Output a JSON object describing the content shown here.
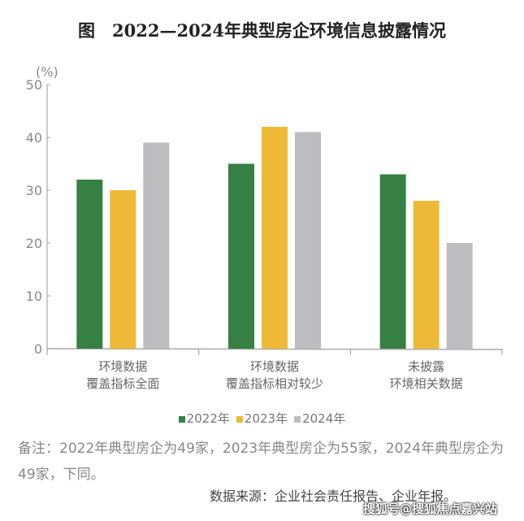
{
  "title": "图　2022—2024年典型房企环境信息披露情况",
  "chart_data": {
    "type": "bar",
    "title": "图　2022—2024年典型房企环境信息披露情况",
    "ylabel": "(%)",
    "ylim": [
      0,
      50
    ],
    "yticks": [
      "0",
      "10",
      "20",
      "30",
      "40",
      "50"
    ],
    "categories": [
      [
        "环境数据",
        "覆盖指标全面"
      ],
      [
        "环境数据",
        "覆盖指标相对较少"
      ],
      [
        "未披露",
        "环境相关数据"
      ]
    ],
    "series": [
      {
        "name": "2022年",
        "color": "#368044",
        "values": [
          32,
          35,
          33
        ]
      },
      {
        "name": "2023年",
        "color": "#efb938",
        "values": [
          30,
          42,
          28
        ]
      },
      {
        "name": "2024年",
        "color": "#bdbdc0",
        "values": [
          39,
          41,
          20
        ]
      }
    ],
    "grid": false,
    "legend": "bottom"
  },
  "note": "备注：2022年典型房企为49家，2023年典型房企为55家，2024年典型房企为49家，下同。",
  "source": "数据来源：企业社会责任报告、企业年报。",
  "watermark": "搜狐号@搜狐焦点嘉兴站"
}
